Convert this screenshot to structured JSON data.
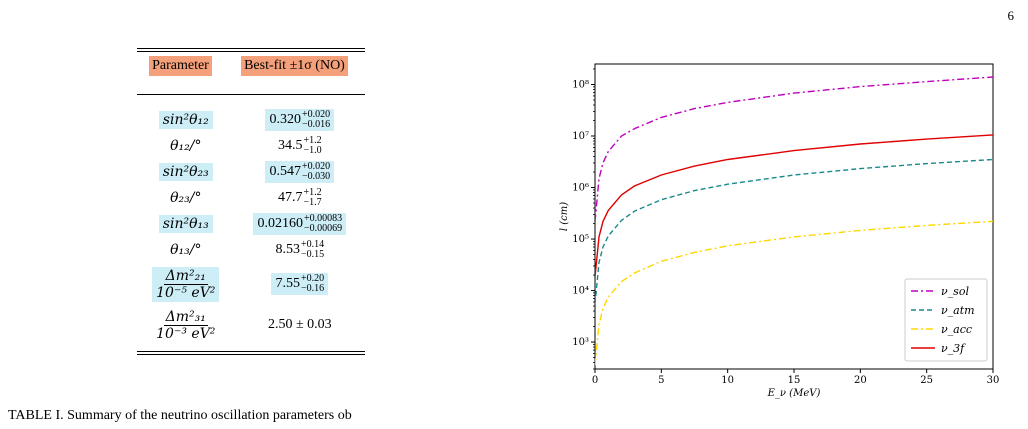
{
  "page_number": "6",
  "caption": "TABLE I. Summary of the neutrino oscillation parameters ob",
  "table": {
    "headers": [
      "Parameter",
      "Best-fit ±1σ (NO)"
    ],
    "rows": [
      {
        "param": "sin²θ₁₂",
        "value": "0.320",
        "sup": "+0.020",
        "sub": "−0.016",
        "highlight": true
      },
      {
        "param": "θ₁₂/°",
        "value": "34.5",
        "sup": "+1.2",
        "sub": "−1.0",
        "highlight": false
      },
      {
        "param": "sin²θ₂₃",
        "value": "0.547",
        "sup": "+0.020",
        "sub": "−0.030",
        "highlight": true
      },
      {
        "param": "θ₂₃/°",
        "value": "47.7",
        "sup": "+1.2",
        "sub": "−1.7",
        "highlight": false
      },
      {
        "param": "sin²θ₁₃",
        "value": "0.02160",
        "sup": "+0.00083",
        "sub": "−0.00069",
        "highlight": true
      },
      {
        "param": "θ₁₃/°",
        "value": "8.53",
        "sup": "+0.14",
        "sub": "−0.15",
        "highlight": false
      },
      {
        "param": "Δm²₂₁ / 10⁻⁵ eV²",
        "param_num": "Δm²₂₁",
        "param_den": "10⁻⁵ eV²",
        "value": "7.55",
        "sup": "+0.20",
        "sub": "−0.16",
        "highlight": true
      },
      {
        "param": "Δm²₃₁ / 10⁻³ eV²",
        "param_num": "Δm²₃₁",
        "param_den": "10⁻³ eV²",
        "value": "2.50 ± 0.03",
        "sup": "",
        "sub": "",
        "highlight": false
      }
    ]
  },
  "chart_data": {
    "type": "line",
    "xlabel": "E_ν (MeV)",
    "ylabel": "l (cm)",
    "xlim": [
      0,
      30
    ],
    "ylim": [
      300,
      250000000
    ],
    "yscale": "log",
    "x_ticks": [
      0,
      5,
      10,
      15,
      20,
      25,
      30
    ],
    "y_ticks": [
      1000,
      10000,
      100000,
      1000000,
      10000000,
      100000000
    ],
    "y_tick_labels": [
      "10³",
      "10⁴",
      "10⁵",
      "10⁶",
      "10⁷",
      "10⁸"
    ],
    "legend_position": "bottom-right",
    "series": [
      {
        "name": "ν_sol",
        "color": "#bf00bf",
        "dash": "dashdot",
        "x": [
          0.1,
          0.3,
          0.6,
          1,
          2,
          3,
          5,
          7.5,
          10,
          15,
          20,
          25,
          30
        ],
        "y": [
          400000,
          1500000,
          3000000,
          5000000,
          10000000,
          14000000,
          23000000,
          34000000,
          45000000,
          68000000,
          91000000,
          114000000,
          140000000
        ]
      },
      {
        "name": "ν_atm",
        "color": "#188a8a",
        "dash": "dashed",
        "x": [
          0.1,
          0.3,
          0.6,
          1,
          2,
          3,
          5,
          7.5,
          10,
          15,
          20,
          25,
          30
        ],
        "y": [
          10000,
          35000,
          70000,
          115000,
          230000,
          350000,
          580000,
          870000,
          1160000,
          1750000,
          2330000,
          2910000,
          3500000
        ]
      },
      {
        "name": "ν_acc",
        "color": "#ffd700",
        "dash": "dashdot",
        "x": [
          0.1,
          0.3,
          0.6,
          1,
          2,
          3,
          5,
          7.5,
          10,
          15,
          20,
          25,
          30
        ],
        "y": [
          650,
          2200,
          4500,
          7500,
          15000,
          22000,
          37000,
          55000,
          74000,
          110000,
          147000,
          184000,
          221000
        ]
      },
      {
        "name": "ν_3f",
        "color": "#e00000",
        "dash": "solid",
        "x": [
          0.1,
          0.3,
          0.6,
          1,
          2,
          3,
          5,
          7.5,
          10,
          15,
          20,
          25,
          30
        ],
        "y": [
          33000,
          110000,
          220000,
          360000,
          720000,
          1080000,
          1750000,
          2600000,
          3500000,
          5200000,
          7000000,
          8700000,
          10500000
        ]
      }
    ]
  }
}
